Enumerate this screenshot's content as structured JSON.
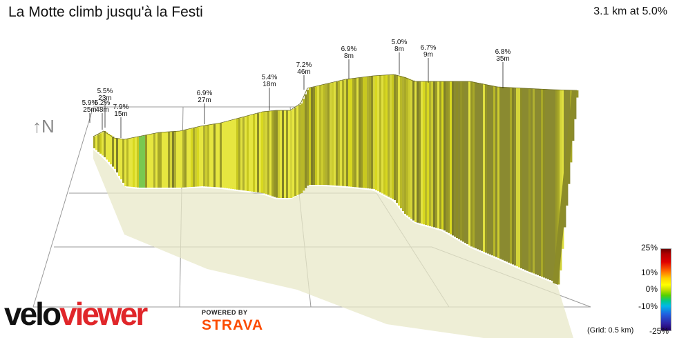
{
  "header": {
    "title": "La Motte climb jusqu'à la Festi",
    "summary": "3.1 km at 5.0%"
  },
  "compass_label": "↑N",
  "legend": {
    "labels": [
      "25%",
      "10%",
      "0%",
      "-10%",
      "-25%"
    ],
    "grid_note": "(Grid: 0.5 km)"
  },
  "branding": {
    "logo_part1": "velo",
    "logo_part2": "viewer",
    "powered_by": "POWERED BY",
    "strava": "STRAVA"
  },
  "colors": {
    "profile_yellow": "#d8d820",
    "profile_olive": "#8c8c28",
    "profile_green": "#7ac850",
    "shadow": "#e8e8c8",
    "logo_red": "#e0262a",
    "strava_orange": "#fc4c02"
  },
  "chart_data": {
    "type": "area",
    "title": "La Motte climb jusqu'à la Festi",
    "subtitle": "3.1 km at 5.0%",
    "total_distance_km": 3.1,
    "average_gradient_pct": 5.0,
    "x_unit": "km",
    "y_unit": "m",
    "grid_spacing_km": 0.5,
    "color_scale_pct": [
      25,
      10,
      0,
      -10,
      -25
    ],
    "segments": [
      {
        "gradient": "5.9%",
        "length": "25m"
      },
      {
        "gradient": "5.5%",
        "length": "23m"
      },
      {
        "gradient": "5.2%",
        "length": "48m"
      },
      {
        "gradient": "7.9%",
        "length": "15m"
      },
      {
        "gradient": "6.9%",
        "length": "27m"
      },
      {
        "gradient": "5.4%",
        "length": "18m"
      },
      {
        "gradient": "7.2%",
        "length": "46m"
      },
      {
        "gradient": "6.9%",
        "length": "8m"
      },
      {
        "gradient": "5.0%",
        "length": "8m"
      },
      {
        "gradient": "6.7%",
        "length": "9m"
      },
      {
        "gradient": "6.8%",
        "length": "35m"
      }
    ]
  }
}
